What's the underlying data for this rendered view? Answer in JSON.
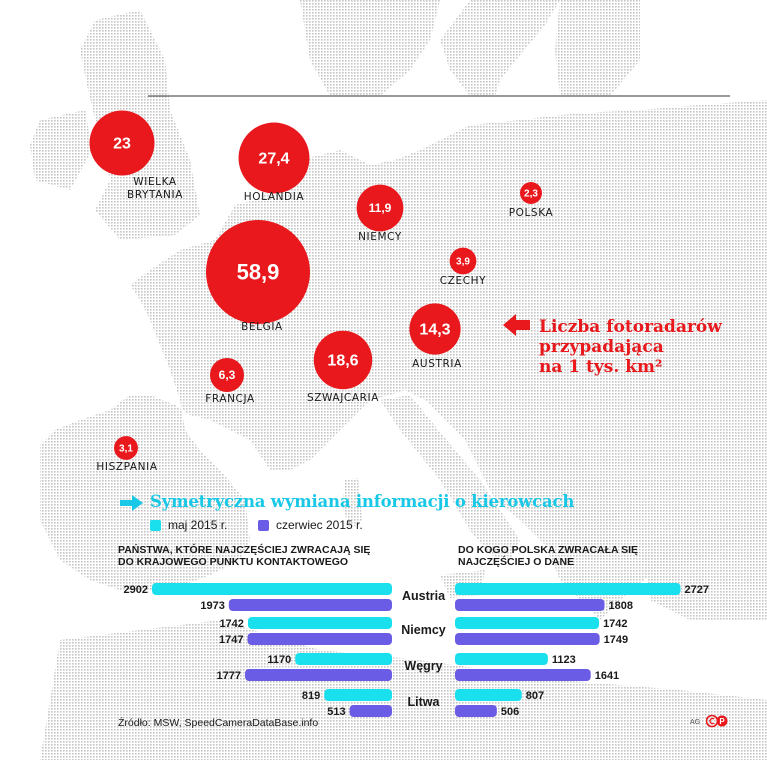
{
  "map": {
    "circles": [
      {
        "country": "WIELKA BRYTANIA",
        "value_label": "23",
        "value": 23.0
      },
      {
        "country": "HOLANDIA",
        "value_label": "27,4",
        "value": 27.4
      },
      {
        "country": "NIEMCY",
        "value_label": "11,9",
        "value": 11.9
      },
      {
        "country": "POLSKA",
        "value_label": "2,3",
        "value": 2.3
      },
      {
        "country": "BELGIA",
        "value_label": "58,9",
        "value": 58.9
      },
      {
        "country": "CZECHY",
        "value_label": "3,9",
        "value": 3.9
      },
      {
        "country": "AUSTRIA",
        "value_label": "14,3",
        "value": 14.3
      },
      {
        "country": "FRANCJA",
        "value_label": "6,3",
        "value": 6.3
      },
      {
        "country": "SZWAJCARIA",
        "value_label": "18,6",
        "value": 18.6
      },
      {
        "country": "HISZPANIA",
        "value_label": "3,1",
        "value": 3.1
      }
    ],
    "callout_lines": [
      "Liczba fotoradarów",
      "przypadająca",
      "na 1 tys. km²"
    ]
  },
  "exchange": {
    "title": "Symetryczna wymiana informacji o kierowcach",
    "legend": [
      "maj 2015 r.",
      "czerwiec 2015 r."
    ],
    "left_header": [
      "PAŃSTWA, KTÓRE NAJCZĘŚCIEJ ZWRACAJĄ SIĘ",
      "DO KRAJOWEGO PUNKTU KONTAKTOWEGO"
    ],
    "right_header": [
      "DO KOGO POLSKA ZWRACAŁA SIĘ",
      "NAJCZĘŚCIEJ O DANE"
    ]
  },
  "chart_data": [
    {
      "type": "bubble-map",
      "categories": [
        "WIELKA BRYTANIA",
        "HOLANDIA",
        "NIEMCY",
        "POLSKA",
        "BELGIA",
        "CZECHY",
        "AUSTRIA",
        "FRANCJA",
        "SZWAJCARIA",
        "HISZPANIA"
      ],
      "values": [
        23,
        27.4,
        11.9,
        2.3,
        58.9,
        3.9,
        14.3,
        6.3,
        18.6,
        3.1
      ],
      "title": "Liczba fotoradarów przypadająca na 1 tys. km²"
    },
    {
      "type": "bar",
      "orientation": "horizontal",
      "title": "PAŃSTWA, KTÓRE NAJCZĘŚCIEJ ZWRACAJĄ SIĘ DO KRAJOWEGO PUNKTU KONTAKTOWEGO",
      "categories": [
        "Austria",
        "Niemcy",
        "Węgry",
        "Litwa"
      ],
      "series": [
        {
          "name": "maj 2015 r.",
          "values": [
            2902,
            1742,
            1170,
            819
          ]
        },
        {
          "name": "czerwiec 2015 r.",
          "values": [
            1973,
            1747,
            1777,
            513
          ]
        }
      ]
    },
    {
      "type": "bar",
      "orientation": "horizontal",
      "title": "DO KOGO POLSKA ZWRACAŁA SIĘ NAJCZĘŚCIEJ O DANE",
      "categories": [
        "Austria",
        "Niemcy",
        "Węgry",
        "Litwa"
      ],
      "series": [
        {
          "name": "maj 2015 r.",
          "values": [
            2727,
            1742,
            1123,
            807
          ]
        },
        {
          "name": "czerwiec 2015 r.",
          "values": [
            1808,
            1749,
            1641,
            506
          ]
        }
      ]
    }
  ],
  "colors": {
    "circle": "#e8181c",
    "series_may": "#19e0ec",
    "series_june": "#6b5ce6",
    "title": "#19c8e6",
    "map_dots": "#c4c4c4"
  },
  "source": "Źródło: MSW, SpeedCameraDataBase.info",
  "credit": "AG",
  "icons": {
    "arrow_left": "arrow-left-icon",
    "arrow_right": "arrow-right-icon",
    "cc": "cc-license-icon"
  }
}
